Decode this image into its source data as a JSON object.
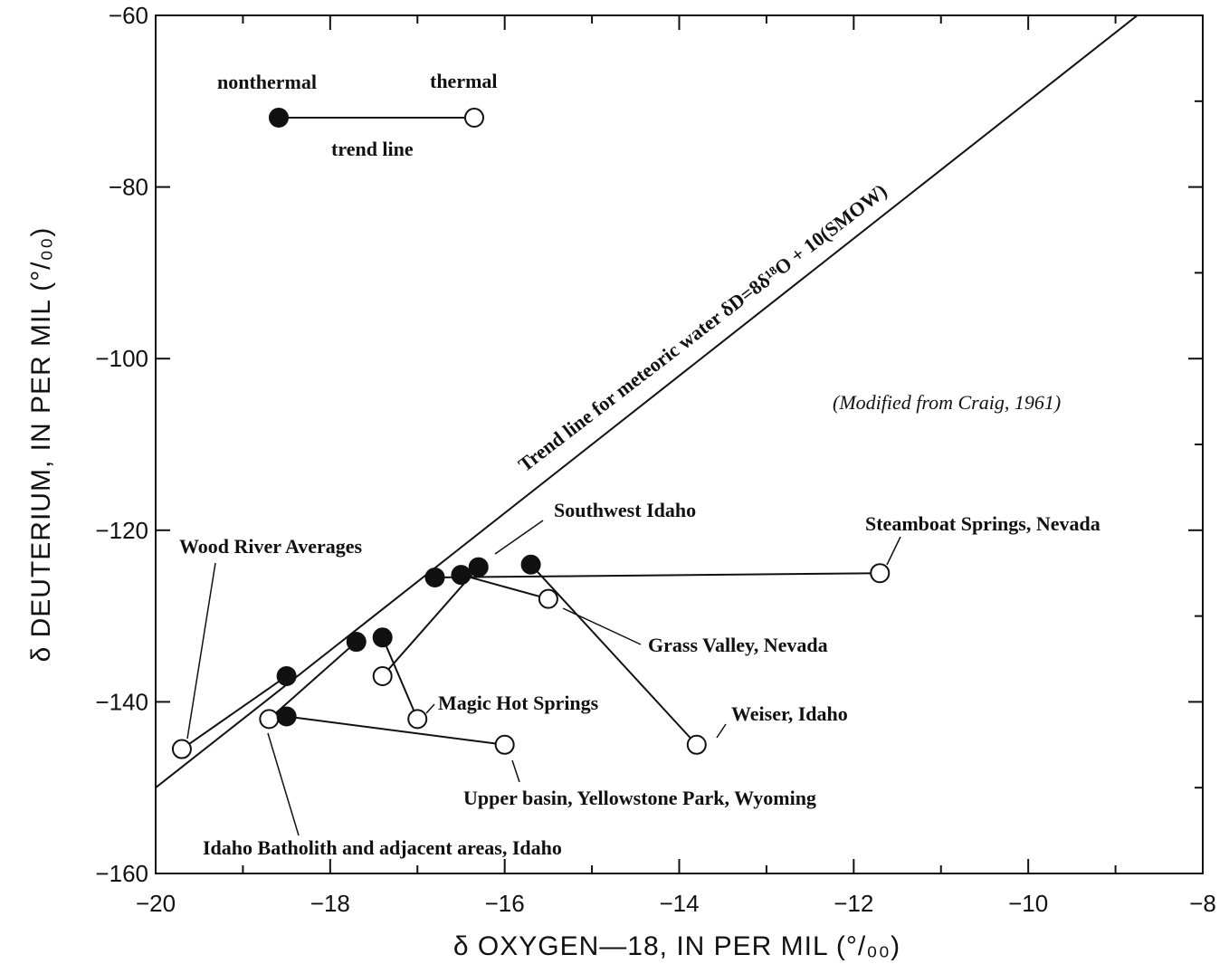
{
  "chart_data": {
    "type": "scatter",
    "xlabel": "δ OXYGEN—18, IN PER MIL (°/₀₀)",
    "ylabel": "δ DEUTERIUM, IN PER MIL (°/₀₀)",
    "xlim": [
      -20,
      -8
    ],
    "ylim": [
      -160,
      -60
    ],
    "x_ticks": [
      -20,
      -18,
      -16,
      -14,
      -12,
      -10,
      -8
    ],
    "x_tick_labels": [
      "−20",
      "−18",
      "−16",
      "−14",
      "−12",
      "−10",
      "−8"
    ],
    "y_ticks": [
      -160,
      -140,
      -120,
      -100,
      -80,
      -60
    ],
    "y_tick_labels": [
      "−160",
      "−140",
      "−120",
      "−100",
      "−80",
      "−60"
    ],
    "grid": false,
    "meteoric_line": {
      "label": "Trend line for meteoric water  δD=8δ¹⁸O + 10(SMOW)",
      "slope": 8,
      "intercept": 10
    },
    "source_note": "(Modified from Craig, 1961)",
    "legend": {
      "nonthermal": "nonthermal",
      "thermal": "thermal",
      "trend": "trend line"
    },
    "series": [
      {
        "name": "Wood River Averages",
        "nonthermal": [
          -18.5,
          -137
        ],
        "thermal": [
          -19.7,
          -145.5
        ]
      },
      {
        "name": "Idaho Batholith and adjacent areas, Idaho",
        "nonthermal": [
          -17.7,
          -133
        ],
        "thermal": [
          -18.7,
          -142
        ]
      },
      {
        "name": "Upper basin, Yellowstone Park, Wyoming",
        "nonthermal": [
          -18.5,
          -141.7
        ],
        "thermal": [
          -16.0,
          -145
        ]
      },
      {
        "name": "Magic Hot Springs",
        "nonthermal": [
          -17.4,
          -132.5
        ],
        "thermal": [
          -17.0,
          -142
        ]
      },
      {
        "name": "Southwest Idaho",
        "nonthermal": [
          -16.3,
          -124.3
        ],
        "thermal": [
          -17.4,
          -137
        ]
      },
      {
        "name": "Grass Valley, Nevada",
        "nonthermal": [
          -16.5,
          -125.2
        ],
        "thermal": [
          -15.5,
          -128
        ]
      },
      {
        "name": "Weiser, Idaho",
        "nonthermal": [
          -15.7,
          -124
        ],
        "thermal": [
          -13.8,
          -145
        ]
      },
      {
        "name": "Steamboat Springs, Nevada",
        "nonthermal": [
          -16.8,
          -125.5
        ],
        "thermal": [
          -11.7,
          -125
        ]
      }
    ]
  }
}
